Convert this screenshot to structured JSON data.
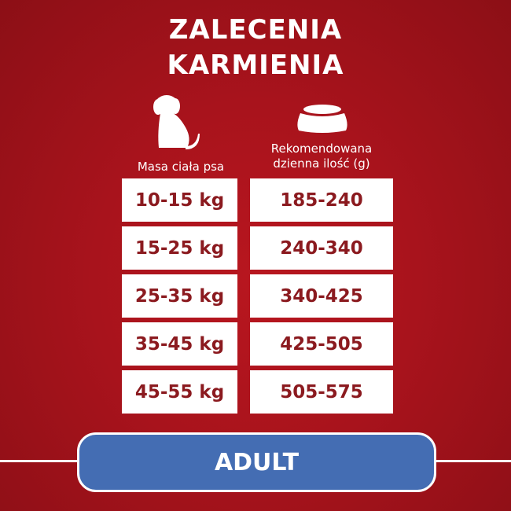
{
  "title_line1": "ZALECENIA",
  "title_line2": "KARMIENIA",
  "columns": {
    "weight": "Masa ciała psa",
    "amount_line1": "Rekomendowana",
    "amount_line2": "dzienna ilość (g)"
  },
  "icons": {
    "weight": "dog-icon",
    "amount": "food-bowl-icon"
  },
  "rows": [
    {
      "weight": "10-15 kg",
      "amount": "185-240"
    },
    {
      "weight": "15-25 kg",
      "amount": "240-340"
    },
    {
      "weight": "25-35 kg",
      "amount": "340-425"
    },
    {
      "weight": "35-45 kg",
      "amount": "425-505"
    },
    {
      "weight": "45-55 kg",
      "amount": "505-575"
    }
  ],
  "badge": "ADULT",
  "colors": {
    "background": "#a8131c",
    "text": "#8b1a1f",
    "badge": "#446db3"
  }
}
